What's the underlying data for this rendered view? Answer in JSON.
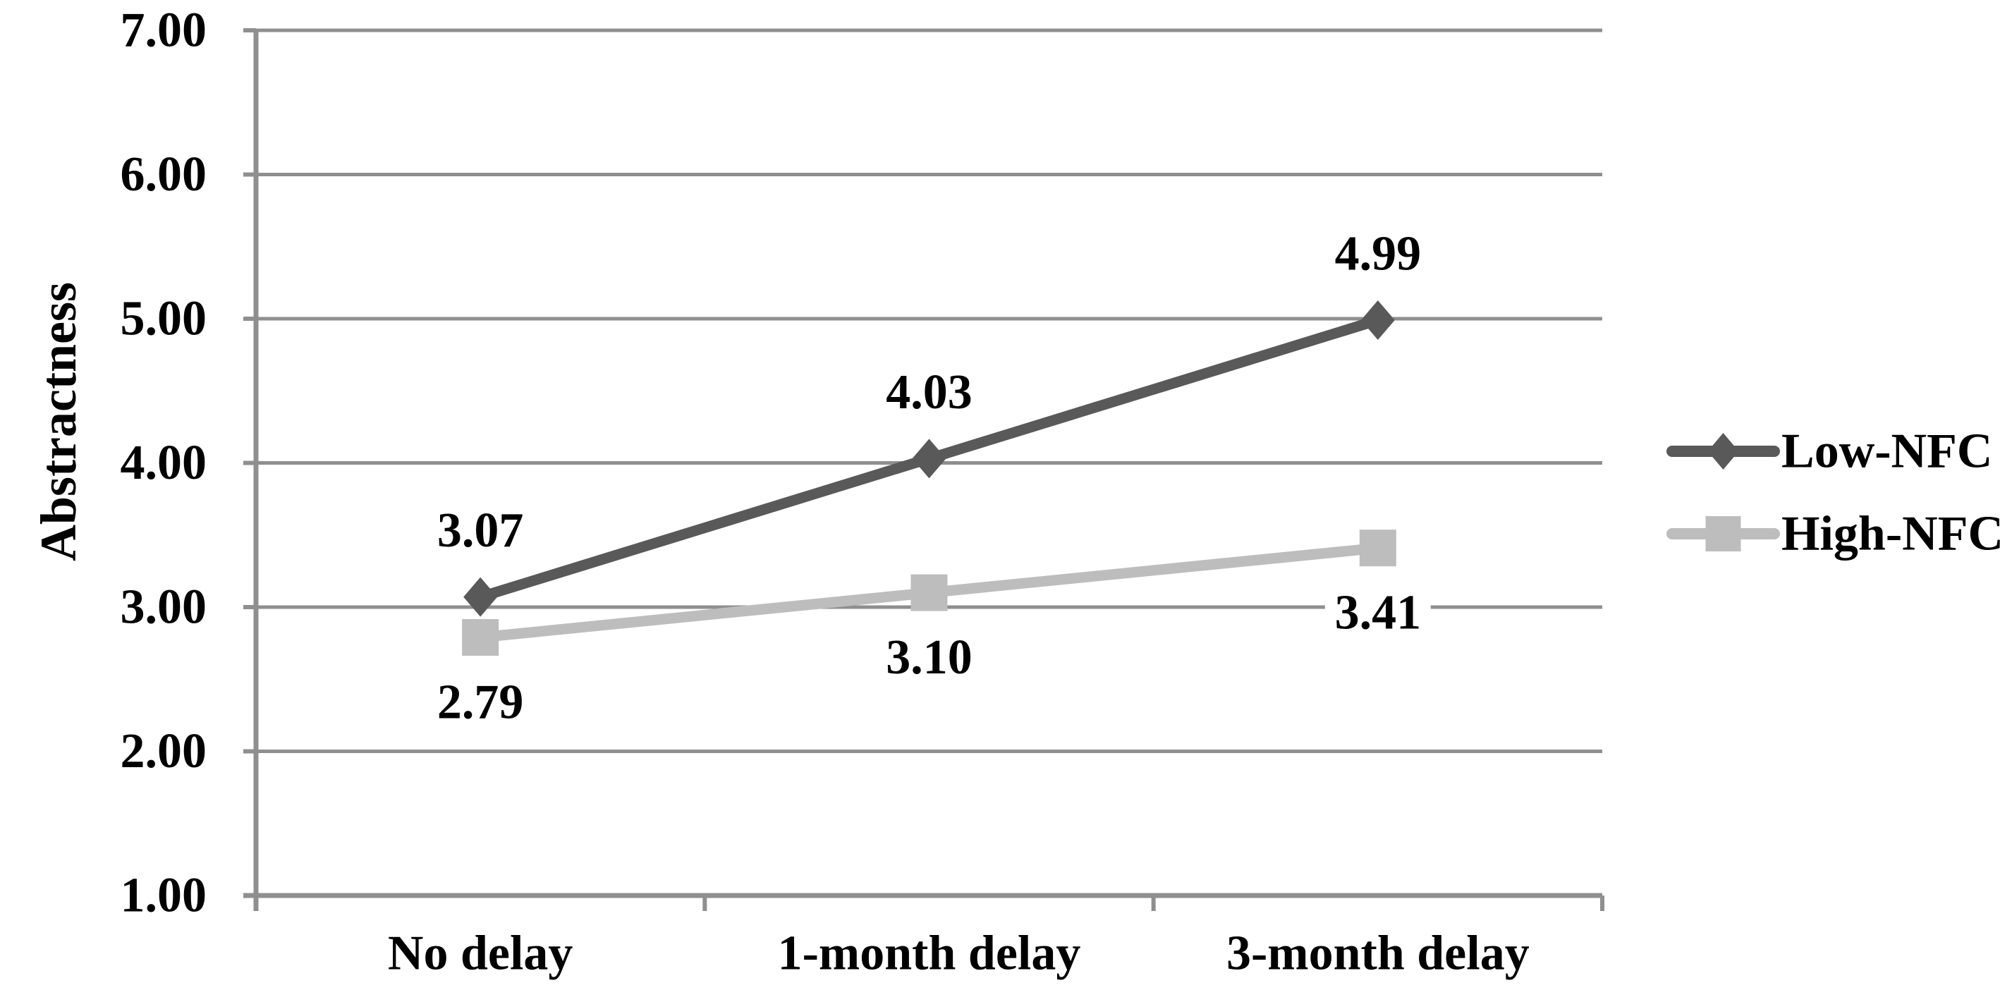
{
  "figure": {
    "background": "#ffffff"
  },
  "y_axis": {
    "title": "Abstractness",
    "tick_labels": [
      "1.00",
      "2.00",
      "3.00",
      "4.00",
      "5.00",
      "6.00",
      "7.00"
    ]
  },
  "x_axis": {
    "categories": [
      "No delay",
      "1-month delay",
      "3-month delay"
    ]
  },
  "legend": {
    "position": "right",
    "items": [
      {
        "label": "Low-NFC",
        "marker": "diamond",
        "color": "#595959"
      },
      {
        "label": "High-NFC",
        "marker": "square",
        "color": "#bdbdbd"
      }
    ]
  },
  "chart_data": {
    "type": "line",
    "title": "",
    "xlabel": "",
    "ylabel": "Abstractness",
    "categories": [
      "No delay",
      "1-month delay",
      "3-month delay"
    ],
    "series": [
      {
        "name": "Low-NFC",
        "values": [
          3.07,
          4.03,
          4.99
        ],
        "labels": [
          "3.07",
          "4.03",
          "4.99"
        ],
        "color": "#595959",
        "marker": "diamond",
        "label_position": "above"
      },
      {
        "name": "High-NFC",
        "values": [
          2.79,
          3.1,
          3.41
        ],
        "labels": [
          "2.79",
          "3.10",
          "3.41"
        ],
        "color": "#bdbdbd",
        "marker": "square",
        "label_position": "below"
      }
    ],
    "ylim": [
      1,
      7
    ],
    "ytick_step": 1,
    "grid": true,
    "grid_color": "#8f8f8f",
    "axis_color": "#8f8f8f",
    "legend_position": "right"
  }
}
